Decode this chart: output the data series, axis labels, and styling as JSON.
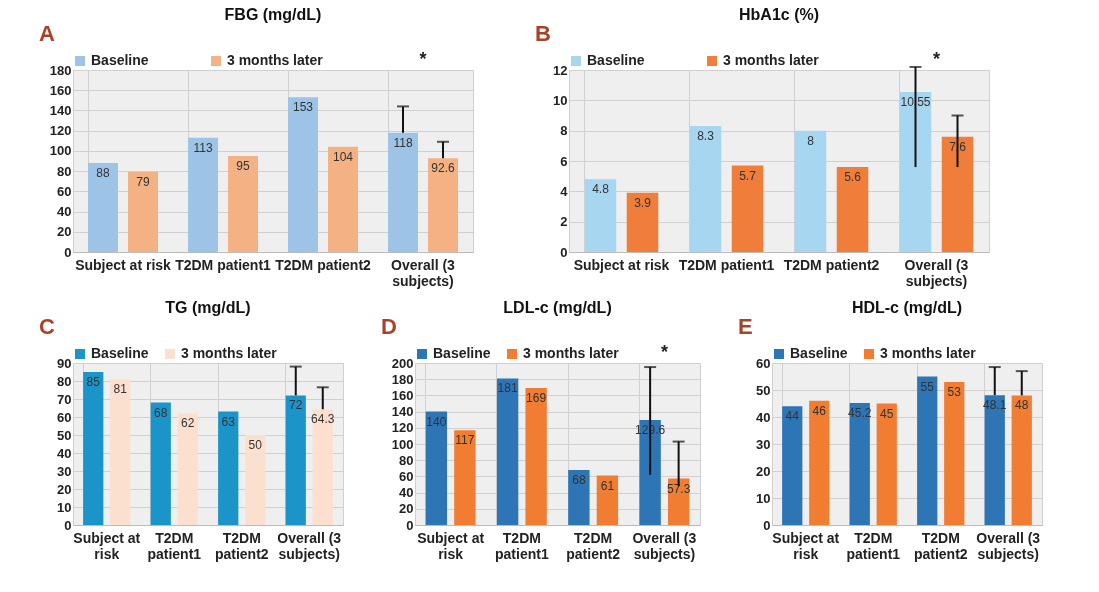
{
  "chart_data": [
    {
      "type": "bar",
      "title": "FBG (mg/dL)",
      "categories": [
        "Subject at risk",
        "T2DM patient1",
        "T2DM patient2",
        "Overall (3 subjects)"
      ],
      "series": [
        {
          "name": "Baseline",
          "color": "#9dc3e6",
          "values": [
            88,
            113,
            153,
            118
          ],
          "errors": [
            null,
            null,
            null,
            [
              118,
              144
            ]
          ]
        },
        {
          "name": "3 months later",
          "color": "#f4b183",
          "values": [
            79,
            95,
            104,
            92.6
          ],
          "errors": [
            null,
            null,
            null,
            [
              92.6,
              109
            ]
          ]
        }
      ],
      "ylim": [
        0,
        180
      ],
      "yticks": [
        0,
        20,
        40,
        60,
        80,
        100,
        120,
        140,
        160,
        180
      ],
      "grid": true,
      "legend": "top",
      "data_labels": true,
      "annotations": [
        "A",
        "*"
      ]
    },
    {
      "type": "bar",
      "title": "HbA1c (%)",
      "categories": [
        "Subject at risk",
        "T2DM patient1",
        "T2DM patient2",
        "Overall (3 subjects)"
      ],
      "series": [
        {
          "name": "Baseline",
          "color": "#a6d6f0",
          "values": [
            4.8,
            8.3,
            8,
            10.55
          ],
          "errors": [
            null,
            null,
            null,
            [
              5.6,
              12.2
            ]
          ]
        },
        {
          "name": "3 months later",
          "color": "#f07d3a",
          "values": [
            3.9,
            5.7,
            5.6,
            7.6
          ],
          "errors": [
            null,
            null,
            null,
            [
              5.6,
              9.0
            ]
          ]
        }
      ],
      "ylim": [
        0,
        12
      ],
      "yticks": [
        0,
        2,
        4,
        6,
        8,
        10,
        12
      ],
      "grid": true,
      "legend": "top",
      "data_labels": true,
      "annotations": [
        "B",
        "*"
      ]
    },
    {
      "type": "bar",
      "title": "TG (mg/dL)",
      "categories": [
        "Subject at risk",
        "T2DM patient1",
        "T2DM patient2",
        "Overall (3 subjects)"
      ],
      "series": [
        {
          "name": "Baseline",
          "color": "#1b95c9",
          "values": [
            85,
            68,
            63,
            72
          ],
          "errors": [
            null,
            null,
            null,
            [
              72,
              88
            ]
          ]
        },
        {
          "name": "3 months later",
          "color": "#fbe0d0",
          "values": [
            81,
            62,
            50,
            64.3
          ],
          "errors": [
            null,
            null,
            null,
            [
              64.3,
              76.5
            ]
          ]
        }
      ],
      "ylim": [
        0,
        90
      ],
      "yticks": [
        0,
        10,
        20,
        30,
        40,
        50,
        60,
        70,
        80,
        90
      ],
      "grid": true,
      "legend": "top",
      "data_labels": true,
      "annotations": [
        "C"
      ]
    },
    {
      "type": "bar",
      "title": "LDL-c (mg/dL)",
      "categories": [
        "Subject at risk",
        "T2DM patient1",
        "T2DM patient2",
        "Overall (3 subjects)"
      ],
      "series": [
        {
          "name": "Baseline",
          "color": "#2e75b6",
          "values": [
            140,
            181,
            68,
            129.6
          ],
          "errors": [
            null,
            null,
            null,
            [
              62,
              195
            ]
          ]
        },
        {
          "name": "3 months later",
          "color": "#f07d32",
          "values": [
            117,
            169,
            61,
            57.3
          ],
          "errors": [
            null,
            null,
            null,
            [
              48,
              103
            ]
          ]
        }
      ],
      "ylim": [
        0,
        200
      ],
      "yticks": [
        0,
        20,
        40,
        60,
        80,
        100,
        120,
        140,
        160,
        180,
        200
      ],
      "grid": true,
      "legend": "top",
      "data_labels": true,
      "annotations": [
        "D",
        "*"
      ]
    },
    {
      "type": "bar",
      "title": "HDL-c (mg/dL)",
      "categories": [
        "Subject at risk",
        "T2DM patient1",
        "T2DM patient2",
        "Overall (3 subjects)"
      ],
      "series": [
        {
          "name": "Baseline",
          "color": "#2e75b6",
          "values": [
            44,
            45.2,
            55,
            48.1
          ],
          "errors": [
            null,
            null,
            null,
            [
              48.1,
              58.5
            ]
          ]
        },
        {
          "name": "3 months later",
          "color": "#f07d32",
          "values": [
            46,
            45,
            53,
            48
          ],
          "errors": [
            null,
            null,
            null,
            [
              48,
              57
            ]
          ]
        }
      ],
      "ylim": [
        0,
        60
      ],
      "yticks": [
        0,
        10,
        20,
        30,
        40,
        50,
        60
      ],
      "grid": true,
      "legend": "top",
      "data_labels": true,
      "annotations": [
        "E"
      ]
    }
  ]
}
